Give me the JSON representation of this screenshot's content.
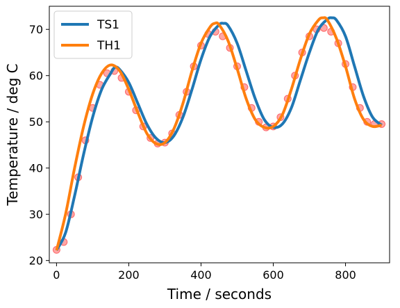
{
  "chart_data": {
    "type": "line",
    "xlabel": "Time / seconds",
    "ylabel": "Temperature / deg C",
    "xlim": [
      -20,
      922
    ],
    "ylim": [
      19.5,
      75
    ],
    "xticks": [
      0,
      200,
      400,
      600,
      800
    ],
    "yticks": [
      20,
      30,
      40,
      50,
      60,
      70
    ],
    "grid": false,
    "legend_position": "top-left",
    "series": [
      {
        "name": "TS1",
        "style": "line",
        "color": "#1f77b4",
        "x": [
          0,
          25,
          50,
          75,
          100,
          125,
          150,
          162,
          175,
          200,
          225,
          250,
          275,
          300,
          325,
          350,
          375,
          400,
          425,
          450,
          462,
          475,
          500,
          525,
          550,
          575,
          600,
          625,
          650,
          675,
          700,
          725,
          750,
          762,
          775,
          800,
          825,
          850,
          875,
          900
        ],
        "y": [
          22.2,
          26.0,
          34.0,
          43.0,
          51.0,
          57.0,
          60.5,
          61.8,
          61.3,
          58.5,
          54.0,
          49.5,
          46.5,
          45.5,
          47.0,
          51.0,
          57.0,
          63.5,
          68.5,
          71.0,
          71.3,
          70.8,
          67.0,
          61.0,
          55.0,
          50.5,
          48.8,
          49.5,
          53.0,
          59.0,
          65.0,
          70.0,
          72.2,
          72.5,
          72.0,
          68.5,
          62.0,
          55.5,
          51.0,
          49.3
        ]
      },
      {
        "name": "TH1",
        "style": "line",
        "color": "#ff7f0e",
        "x": [
          0,
          25,
          50,
          75,
          100,
          125,
          150,
          175,
          200,
          225,
          250,
          275,
          300,
          325,
          350,
          375,
          400,
          425,
          438,
          450,
          475,
          500,
          525,
          550,
          575,
          600,
          625,
          650,
          675,
          700,
          725,
          738,
          750,
          775,
          800,
          825,
          850,
          875,
          900
        ],
        "y": [
          22.2,
          30.0,
          40.0,
          49.0,
          56.0,
          60.5,
          62.3,
          61.0,
          57.0,
          52.0,
          47.5,
          45.3,
          45.5,
          48.5,
          54.0,
          61.0,
          67.0,
          70.5,
          71.3,
          71.0,
          67.5,
          61.5,
          55.0,
          50.5,
          48.8,
          49.0,
          51.5,
          57.0,
          63.5,
          69.0,
          72.0,
          72.5,
          72.0,
          68.0,
          62.0,
          55.0,
          50.5,
          49.0,
          49.3
        ]
      },
      {
        "style": "scatter",
        "color": "#ff0000",
        "x": [
          0,
          20,
          40,
          60,
          80,
          100,
          120,
          140,
          160,
          180,
          200,
          220,
          240,
          260,
          280,
          300,
          320,
          340,
          360,
          380,
          400,
          420,
          440,
          460,
          480,
          500,
          520,
          540,
          560,
          580,
          600,
          620,
          640,
          660,
          680,
          700,
          720,
          740,
          760,
          780,
          800,
          820,
          840,
          860,
          880,
          900
        ],
        "y": [
          22.3,
          24.0,
          30.0,
          38.0,
          46.0,
          53.0,
          58.0,
          60.5,
          61.0,
          59.5,
          56.5,
          52.5,
          49.0,
          46.5,
          45.3,
          45.5,
          47.5,
          51.5,
          56.5,
          62.0,
          66.5,
          69.0,
          69.5,
          68.5,
          66.0,
          62.0,
          57.5,
          53.0,
          50.0,
          48.8,
          49.0,
          51.0,
          55.0,
          60.0,
          65.0,
          68.5,
          70.0,
          70.3,
          69.5,
          67.0,
          62.5,
          57.5,
          53.0,
          50.0,
          49.5,
          49.5
        ]
      }
    ]
  }
}
